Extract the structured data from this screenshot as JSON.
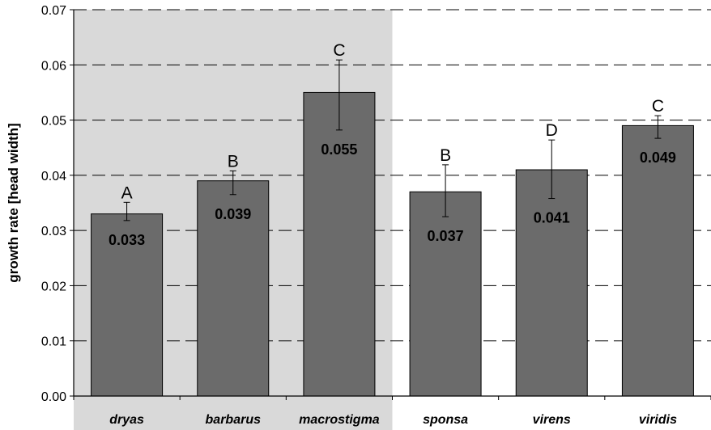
{
  "chart_data": {
    "type": "bar",
    "title": "",
    "xlabel": "",
    "ylabel": "growth rate [head width]",
    "ylim": [
      0,
      0.07
    ],
    "yticks": [
      "0.00",
      "0.01",
      "0.02",
      "0.03",
      "0.04",
      "0.05",
      "0.06",
      "0.07"
    ],
    "grid": "dashed horizontal",
    "categories": [
      "dryas",
      "barbarus",
      "macrostigma",
      "sponsa",
      "virens",
      "viridis"
    ],
    "values": [
      0.033,
      0.039,
      0.055,
      0.037,
      0.041,
      0.049
    ],
    "value_labels": [
      "0.033",
      "0.039",
      "0.055",
      "0.037",
      "0.041",
      "0.049"
    ],
    "error_low": [
      0.0318,
      0.0365,
      0.0482,
      0.0325,
      0.0358,
      0.0467
    ],
    "error_high": [
      0.0351,
      0.0408,
      0.0609,
      0.0419,
      0.0464,
      0.0508
    ],
    "group_letters": [
      "A",
      "B",
      "C",
      "B",
      "D",
      "C"
    ],
    "shaded_group": [
      "dryas",
      "barbarus",
      "macrostigma"
    ],
    "colors": {
      "bar": "#6b6b6b",
      "shade": "#d9d9d9",
      "grid": "#000000",
      "axis": "#000000"
    }
  }
}
